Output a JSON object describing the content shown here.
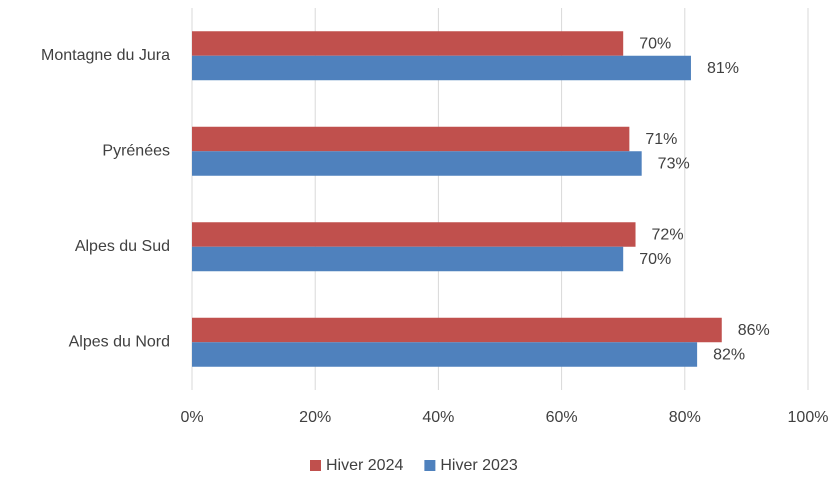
{
  "chart_data": {
    "type": "hbar",
    "categories": [
      "Montagne du Jura",
      "Pyrénées",
      "Alpes du Sud",
      "Alpes du Nord"
    ],
    "series": [
      {
        "name": "Hiver 2024",
        "color": "#c0504d",
        "values": [
          70,
          71,
          72,
          86
        ],
        "value_labels": [
          "70%",
          "71%",
          "72%",
          "86%"
        ]
      },
      {
        "name": "Hiver 2023",
        "color": "#4f81bd",
        "values": [
          81,
          73,
          70,
          82
        ],
        "value_labels": [
          "81%",
          "73%",
          "70%",
          "82%"
        ]
      }
    ],
    "xlim": [
      0,
      100
    ],
    "xticks": [
      {
        "value": 0,
        "label": "0%"
      },
      {
        "value": 20,
        "label": "20%"
      },
      {
        "value": 40,
        "label": "40%"
      },
      {
        "value": 60,
        "label": "60%"
      },
      {
        "value": 80,
        "label": "80%"
      },
      {
        "value": 100,
        "label": "100%"
      }
    ],
    "grid": true,
    "legend": "bottom"
  }
}
